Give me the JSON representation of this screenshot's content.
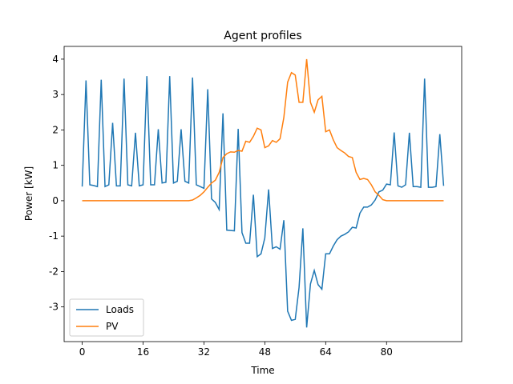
{
  "chart_data": {
    "type": "line",
    "title": "Agent profiles",
    "xlabel": "Time",
    "ylabel": "Power [kW]",
    "x": [
      0,
      1,
      2,
      3,
      4,
      5,
      6,
      7,
      8,
      9,
      10,
      11,
      12,
      13,
      14,
      15,
      16,
      17,
      18,
      19,
      20,
      21,
      22,
      23,
      24,
      25,
      26,
      27,
      28,
      29,
      30,
      31,
      32,
      33,
      34,
      35,
      36,
      37,
      38,
      39,
      40,
      41,
      42,
      43,
      44,
      45,
      46,
      47,
      48,
      49,
      50,
      51,
      52,
      53,
      54,
      55,
      56,
      57,
      58,
      59,
      60,
      61,
      62,
      63,
      64,
      65,
      66,
      67,
      68,
      69,
      70,
      71,
      72,
      73,
      74,
      75,
      76,
      77,
      78,
      79,
      80,
      81,
      82,
      83,
      84,
      85,
      86,
      87,
      88,
      89,
      90,
      91,
      92,
      93,
      94,
      95
    ],
    "series": [
      {
        "name": "Loads",
        "color": "#1f77b4",
        "values": [
          0.4,
          3.4,
          0.45,
          0.43,
          0.4,
          3.42,
          0.4,
          0.45,
          2.2,
          0.42,
          0.42,
          3.45,
          0.45,
          0.42,
          1.92,
          0.42,
          0.45,
          3.52,
          0.45,
          0.45,
          2.02,
          0.5,
          0.52,
          3.52,
          0.5,
          0.55,
          2.02,
          0.55,
          0.5,
          3.48,
          0.45,
          0.4,
          0.35,
          3.15,
          0.05,
          -0.05,
          -0.25,
          2.47,
          -0.83,
          -0.84,
          -0.85,
          2.03,
          -0.9,
          -1.2,
          -1.2,
          0.17,
          -1.58,
          -1.5,
          -1.05,
          0.32,
          -1.35,
          -1.3,
          -1.37,
          -0.55,
          -3.12,
          -3.38,
          -3.35,
          -2.45,
          -0.78,
          -3.58,
          -2.35,
          -1.97,
          -2.37,
          -2.5,
          -1.5,
          -1.5,
          -1.28,
          -1.1,
          -1.0,
          -0.95,
          -0.88,
          -0.75,
          -0.77,
          -0.35,
          -0.18,
          -0.18,
          -0.12,
          0.02,
          0.25,
          0.3,
          0.47,
          0.45,
          1.93,
          0.42,
          0.38,
          0.45,
          1.92,
          0.4,
          0.4,
          0.38,
          3.45,
          0.38,
          0.38,
          0.4,
          1.88,
          0.42
        ]
      },
      {
        "name": "PV",
        "color": "#ff7f0e",
        "values": [
          0,
          0,
          0,
          0,
          0,
          0,
          0,
          0,
          0,
          0,
          0,
          0,
          0,
          0,
          0,
          0,
          0,
          0,
          0,
          0,
          0,
          0,
          0,
          0,
          0,
          0,
          0,
          0,
          0,
          0.02,
          0.08,
          0.15,
          0.25,
          0.38,
          0.5,
          0.58,
          0.8,
          1.22,
          1.33,
          1.38,
          1.37,
          1.42,
          1.4,
          1.68,
          1.65,
          1.82,
          2.05,
          2.0,
          1.5,
          1.55,
          1.7,
          1.65,
          1.75,
          2.35,
          3.35,
          3.62,
          3.55,
          2.78,
          2.78,
          4.0,
          2.78,
          2.5,
          2.85,
          2.95,
          1.95,
          2.0,
          1.72,
          1.5,
          1.42,
          1.35,
          1.25,
          1.22,
          0.8,
          0.6,
          0.63,
          0.6,
          0.45,
          0.25,
          0.15,
          0.03,
          0,
          0,
          0,
          0,
          0,
          0,
          0,
          0,
          0,
          0,
          0,
          0,
          0,
          0,
          0,
          0
        ]
      }
    ],
    "xlim": [
      -4.75,
      99.75
    ],
    "ylim": [
      -3.98,
      4.36
    ],
    "xticks": [
      0,
      16,
      32,
      48,
      64,
      80
    ],
    "yticks": [
      -3,
      -2,
      -1,
      0,
      1,
      2,
      3,
      4
    ],
    "legend": "lower left"
  }
}
